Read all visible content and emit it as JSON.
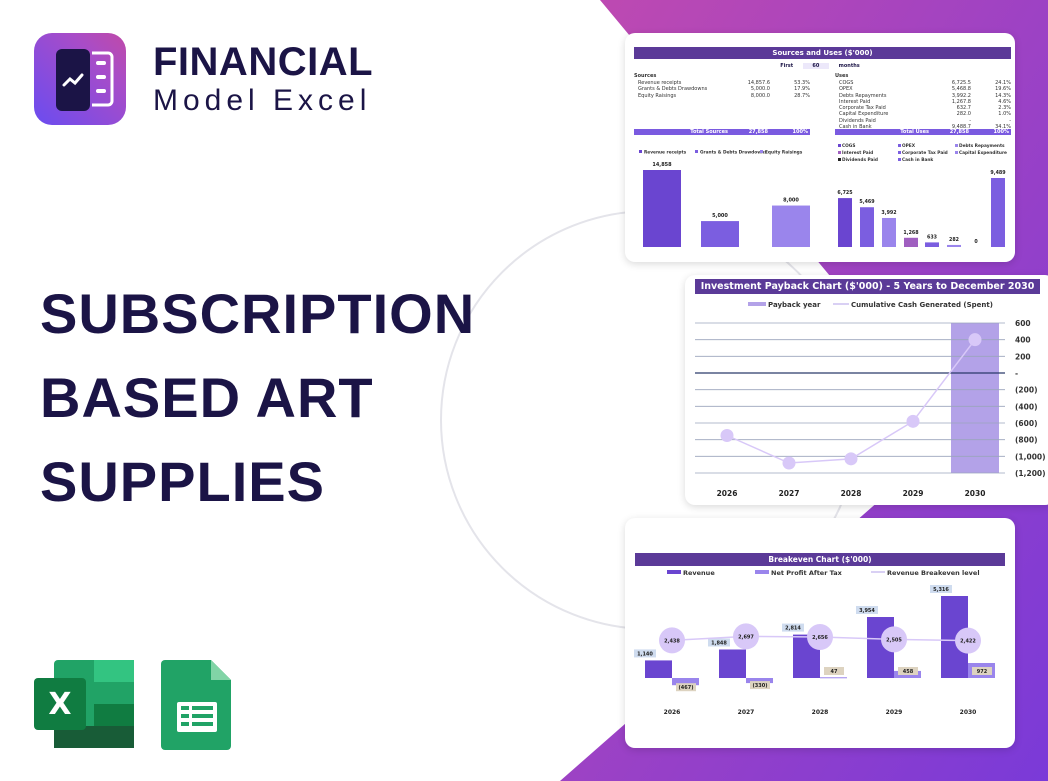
{
  "brand": {
    "line1": "FINANCIAL",
    "line2": "Model Excel"
  },
  "headline": [
    "SUBSCRIPTION",
    "BASED ART",
    "SUPPLIES"
  ],
  "apps": [
    {
      "icon": "excel-icon"
    },
    {
      "icon": "google-sheets-icon"
    }
  ],
  "colors": {
    "purple": "#5b3a98",
    "bar1": "#6a45d0",
    "bar2": "#7b5ee0",
    "bar3": "#9a85ec",
    "light": "#d8c8f8",
    "navy": "#1b1446"
  },
  "sources_uses": {
    "title": "Sources and Uses ($'000)",
    "period": {
      "label": "First",
      "value": "60",
      "unit": "months"
    },
    "sources_label": "Sources",
    "sources": [
      [
        "Revenue receipts",
        "14,857.6",
        "53.3%"
      ],
      [
        "Grants & Debts Drawdowns",
        "5,000.0",
        "17.9%"
      ],
      [
        "Equity Raisings",
        "8,000.0",
        "28.7%"
      ]
    ],
    "total_sources": [
      "Total Sources",
      "27,858",
      "100%"
    ],
    "uses_label": "Uses",
    "uses": [
      [
        "COGS",
        "6,725.5",
        "24.1%"
      ],
      [
        "OPEX",
        "5,468.8",
        "19.6%"
      ],
      [
        "Debts Repayments",
        "3,992.2",
        "14.3%"
      ],
      [
        "Interest Paid",
        "1,267.8",
        "4.6%"
      ],
      [
        "Corporate Tax Paid",
        "632.7",
        "2.3%"
      ],
      [
        "Capital Expenditure",
        "282.0",
        "1.0%"
      ],
      [
        "Dividends Paid",
        "-",
        "-"
      ],
      [
        "Cash in Bank",
        "9,488.7",
        "34.1%"
      ]
    ],
    "total_uses": [
      "Total Uses",
      "27,858",
      "100%"
    ]
  },
  "chart_data": [
    {
      "type": "bar",
      "title": "",
      "categories": [
        "Revenue receipts",
        "Grants & Debts Drawdowns",
        "Equity Raisings"
      ],
      "values": [
        14858,
        5000,
        8000
      ],
      "labels": [
        "14,858",
        "5,000",
        "8,000"
      ],
      "colors": [
        "#6a45d0",
        "#7b5ee0",
        "#9a85ec"
      ],
      "legend": "top"
    },
    {
      "type": "bar",
      "title": "",
      "categories": [
        "COGS",
        "OPEX",
        "Debts Repayments",
        "Interest Paid",
        "Corporate Tax Paid",
        "Capital Expenditure",
        "Dividends Paid",
        "Cash in Bank"
      ],
      "values": [
        6725,
        5469,
        3992,
        1268,
        633,
        282,
        0,
        9489
      ],
      "labels": [
        "6,725",
        "5,469",
        "3,992",
        "1,268",
        "633",
        "282",
        "0",
        "9,489"
      ],
      "colors": [
        "#6a45d0",
        "#7b5ee0",
        "#9a85ec",
        "#a05fc0",
        "#7b5ee0",
        "#9a85ec",
        "#222222",
        "#7b5ee0"
      ],
      "legend": "top"
    },
    {
      "type": "line",
      "title": "Investment Payback Chart ($'000) - 5 Years to December 2030",
      "series": [
        {
          "name": "Cumulative Cash Generated (Spent)",
          "values": [
            -750,
            -1080,
            -1030,
            -580,
            400
          ]
        },
        {
          "name": "Payback year",
          "type": "bar",
          "values": [
            0,
            0,
            0,
            0,
            1
          ]
        }
      ],
      "x": [
        "2026",
        "2027",
        "2028",
        "2029",
        "2030"
      ],
      "ylim": [
        -1200,
        600
      ],
      "yticks": [
        "600",
        "400",
        "200",
        "-",
        "(200)",
        "(400)",
        "(600)",
        "(800)",
        "(1,000)",
        "(1,200)"
      ],
      "grid": true,
      "legend": "top"
    },
    {
      "type": "bar",
      "title": "Breakeven Chart ($'000)",
      "x": [
        "2026",
        "2027",
        "2028",
        "2029",
        "2030"
      ],
      "series": [
        {
          "name": "Revenue",
          "values": [
            1140,
            1848,
            2814,
            3954,
            5316
          ],
          "labels": [
            "1,140",
            "1,848",
            "2,814",
            "3,954",
            "5,316"
          ]
        },
        {
          "name": "Net Profit After Tax",
          "values": [
            -467,
            -330,
            47,
            458,
            972
          ],
          "labels": [
            "(467)",
            "(330)",
            "47",
            "458",
            "972"
          ]
        },
        {
          "name": "Revenue Breakeven level",
          "type": "line",
          "values": [
            2438,
            2697,
            2656,
            2505,
            2422
          ],
          "labels": [
            "2,438",
            "2,697",
            "2,656",
            "2,505",
            "2,422"
          ]
        }
      ],
      "legend": "top"
    }
  ]
}
